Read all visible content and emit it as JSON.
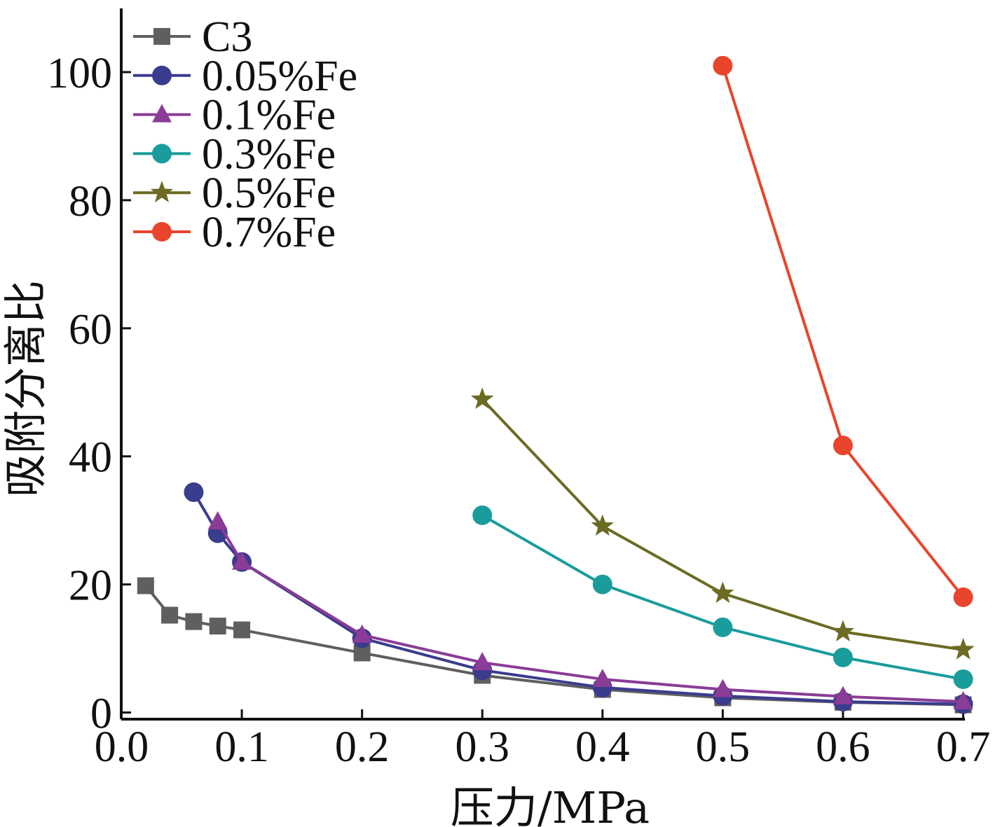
{
  "chart_data": {
    "type": "line",
    "title": "",
    "xlabel": "压力/MPa",
    "ylabel": "吸附分离比",
    "xlim": [
      -0.01,
      0.7
    ],
    "ylim": [
      -1,
      109
    ],
    "xticks": [
      0.0,
      0.1,
      0.2,
      0.3,
      0.4,
      0.5,
      0.6,
      0.7
    ],
    "xtick_labels": [
      "0.0",
      "0.1",
      "0.2",
      "0.3",
      "0.4",
      "0.5",
      "0.6",
      "0.7"
    ],
    "yticks": [
      0,
      20,
      40,
      60,
      80,
      100
    ],
    "ytick_labels": [
      "0",
      "20",
      "40",
      "60",
      "80",
      "100"
    ],
    "grid": false,
    "legend_position": "top-left",
    "series": [
      {
        "name": "C3",
        "color": "#5f5f5f",
        "marker": "square",
        "x": [
          0.02,
          0.04,
          0.06,
          0.08,
          0.1,
          0.2,
          0.3,
          0.4,
          0.5,
          0.6,
          0.7
        ],
        "y": [
          19.8,
          15.2,
          14.2,
          13.5,
          12.9,
          9.3,
          5.8,
          3.6,
          2.3,
          1.6,
          1.2
        ]
      },
      {
        "name": "0.05%Fe",
        "color": "#3a3c8e",
        "marker": "circle",
        "x": [
          0.06,
          0.08,
          0.1,
          0.2,
          0.3,
          0.4,
          0.5,
          0.6,
          0.7
        ],
        "y": [
          34.4,
          28.0,
          23.5,
          11.6,
          6.6,
          3.9,
          2.6,
          1.7,
          1.3
        ]
      },
      {
        "name": "0.1%Fe",
        "color": "#8a3c96",
        "marker": "triangle",
        "x": [
          0.08,
          0.1,
          0.2,
          0.3,
          0.4,
          0.5,
          0.6,
          0.7
        ],
        "y": [
          29.8,
          23.5,
          12.1,
          7.8,
          5.2,
          3.6,
          2.5,
          1.7
        ]
      },
      {
        "name": "0.3%Fe",
        "color": "#1a9c9c",
        "marker": "circle",
        "x": [
          0.3,
          0.4,
          0.5,
          0.6,
          0.7
        ],
        "y": [
          30.8,
          20.0,
          13.3,
          8.6,
          5.2
        ]
      },
      {
        "name": "0.5%Fe",
        "color": "#6b6b24",
        "marker": "star",
        "x": [
          0.3,
          0.4,
          0.5,
          0.6,
          0.7
        ],
        "y": [
          48.9,
          29.1,
          18.6,
          12.6,
          9.8
        ]
      },
      {
        "name": "0.7%Fe",
        "color": "#e8452c",
        "marker": "circle",
        "x": [
          0.5,
          0.6,
          0.7
        ],
        "y": [
          101.0,
          41.7,
          18.0
        ]
      }
    ]
  }
}
